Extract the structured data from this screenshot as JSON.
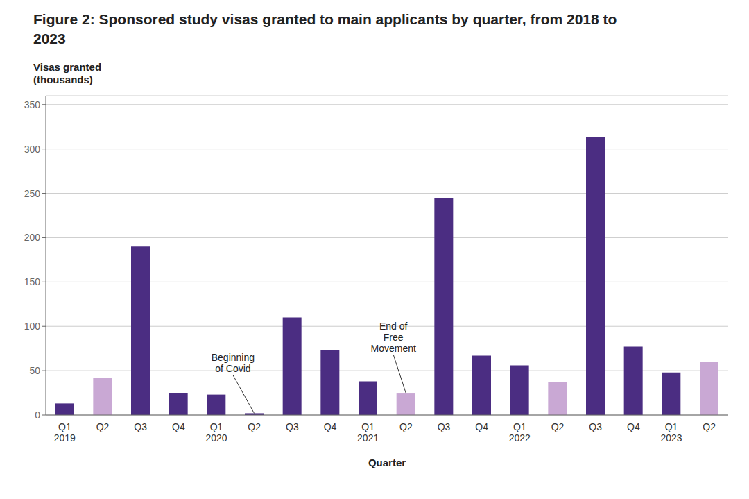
{
  "chart_data": {
    "type": "bar",
    "title": "Figure 2: Sponsored study visas granted to main applicants by quarter, from 2018 to\n2023",
    "x_label": "Quarter",
    "y_label": "Visas granted\n(thousands)",
    "categories": [
      "Q1\n2019",
      "Q2",
      "Q3",
      "Q4",
      "Q1\n2020",
      "Q2",
      "Q3",
      "Q4",
      "Q1\n2021",
      "Q2",
      "Q3",
      "Q4",
      "Q1\n2022",
      "Q2",
      "Q3",
      "Q4",
      "Q1\n2023",
      "Q2"
    ],
    "values": [
      13,
      42,
      190,
      25,
      23,
      2,
      110,
      73,
      38,
      25,
      245,
      67,
      56,
      37,
      313,
      77,
      48,
      60
    ],
    "colors": [
      "#4B2D82",
      "#C9A8D4",
      "#4B2D82",
      "#4B2D82",
      "#4B2D82",
      "#4B2D82",
      "#4B2D82",
      "#4B2D82",
      "#4B2D82",
      "#C9A8D4",
      "#4B2D82",
      "#4B2D82",
      "#4B2D82",
      "#C9A8D4",
      "#4B2D82",
      "#4B2D82",
      "#4B2D82",
      "#C9A8D4"
    ],
    "ylim": [
      0,
      360
    ],
    "yticks": [
      0,
      50,
      100,
      150,
      200,
      250,
      300,
      350
    ],
    "grid": true,
    "annotations": [
      "Beginning\nof Covid",
      "End of\nFree\nMovement"
    ]
  }
}
